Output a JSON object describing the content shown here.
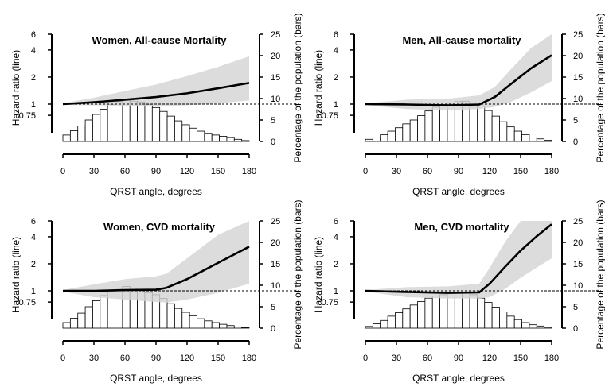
{
  "chart_data": [
    {
      "type": "line",
      "title": "Women, All-cause Mortality",
      "xlabel": "QRST angle, degrees",
      "ylabel_left": "Hazard ratio (line)",
      "ylabel_right": "Percentage of the population (bars)",
      "x_ticks": [
        "0",
        "30",
        "60",
        "90",
        "120",
        "150",
        "180"
      ],
      "y_left_ticks": [
        "0.75",
        "1",
        "2",
        "4",
        "6"
      ],
      "y_right_ticks": [
        "0",
        "5",
        "10",
        "15",
        "20",
        "25"
      ],
      "xlim": [
        0,
        180
      ],
      "ylim_left": [
        0.7,
        6.0
      ],
      "ylim_right": [
        0,
        25
      ],
      "left_scale": "log",
      "reference_line": 1,
      "hazard_ratio": {
        "x": [
          0,
          30,
          60,
          90,
          120,
          150,
          180
        ],
        "y": [
          1.0,
          1.05,
          1.12,
          1.2,
          1.32,
          1.5,
          1.72
        ],
        "ci_lower": [
          0.98,
          0.97,
          0.96,
          0.95,
          0.97,
          1.02,
          1.1
        ],
        "ci_upper": [
          1.02,
          1.18,
          1.4,
          1.65,
          2.05,
          2.6,
          3.4
        ]
      },
      "histogram": {
        "bin_width": 7.2,
        "bin_starts": [
          0,
          7.2,
          14.4,
          21.6,
          28.8,
          36,
          43.2,
          50.4,
          57.6,
          64.8,
          72,
          79.2,
          86.4,
          93.6,
          100.8,
          108,
          115.2,
          122.4,
          129.6,
          136.8,
          144,
          151.2,
          158.4,
          165.6,
          172.8
        ],
        "percent": [
          1.5,
          2.5,
          3.6,
          5,
          6.3,
          7.5,
          8.6,
          9.3,
          9.8,
          9.4,
          9.2,
          8.6,
          7.9,
          7,
          5.9,
          4.8,
          3.9,
          3.1,
          2.4,
          1.9,
          1.5,
          1.2,
          0.9,
          0.5,
          0.2
        ]
      }
    },
    {
      "type": "line",
      "title": "Men, All-cause mortality",
      "xlabel": "QRST angle, degrees",
      "ylabel_left": "Hazard ratio (line)",
      "ylabel_right": "Percentage of the population (bars)",
      "x_ticks": [
        "0",
        "30",
        "60",
        "90",
        "120",
        "150",
        "180"
      ],
      "y_left_ticks": [
        "0.75",
        "1",
        "2",
        "4",
        "6"
      ],
      "y_right_ticks": [
        "0",
        "5",
        "10",
        "15",
        "20",
        "25"
      ],
      "xlim": [
        0,
        180
      ],
      "ylim_left": [
        0.7,
        6.0
      ],
      "ylim_right": [
        0,
        25
      ],
      "left_scale": "log",
      "reference_line": 1,
      "hazard_ratio": {
        "x": [
          0,
          40,
          80,
          110,
          125,
          140,
          160,
          180
        ],
        "y": [
          1.0,
          0.99,
          0.97,
          0.99,
          1.2,
          1.65,
          2.5,
          3.5
        ],
        "ci_lower": [
          0.98,
          0.88,
          0.85,
          0.88,
          0.93,
          1.05,
          1.35,
          1.8
        ],
        "ci_upper": [
          1.02,
          1.12,
          1.15,
          1.25,
          1.55,
          2.4,
          4.2,
          6.0
        ]
      },
      "histogram": {
        "bin_width": 7.2,
        "bin_starts": [
          0,
          7.2,
          14.4,
          21.6,
          28.8,
          36,
          43.2,
          50.4,
          57.6,
          64.8,
          72,
          79.2,
          86.4,
          93.6,
          100.8,
          108,
          115.2,
          122.4,
          129.6,
          136.8,
          144,
          151.2,
          158.4,
          165.6,
          172.8
        ],
        "percent": [
          0.5,
          1,
          1.6,
          2.4,
          3.2,
          4.1,
          5,
          6,
          7.1,
          8,
          8.6,
          8.9,
          9.3,
          9.4,
          9,
          8.3,
          7.2,
          5.9,
          4.6,
          3.4,
          2.4,
          1.6,
          1,
          0.6,
          0.3
        ]
      }
    },
    {
      "type": "line",
      "title": "Women, CVD mortality",
      "xlabel": "QRST angle, degrees",
      "ylabel_left": "Hazard ratio (line)",
      "ylabel_right": "Percentage of the population (bars)",
      "x_ticks": [
        "0",
        "30",
        "60",
        "90",
        "120",
        "150",
        "180"
      ],
      "y_left_ticks": [
        "0.75",
        "1",
        "2",
        "4",
        "6"
      ],
      "y_right_ticks": [
        "0",
        "5",
        "10",
        "15",
        "20",
        "25"
      ],
      "xlim": [
        0,
        180
      ],
      "ylim_left": [
        0.7,
        6.0
      ],
      "ylim_right": [
        0,
        25
      ],
      "left_scale": "log",
      "reference_line": 1,
      "hazard_ratio": {
        "x": [
          0,
          30,
          60,
          90,
          100,
          120,
          150,
          180
        ],
        "y": [
          1.0,
          1.0,
          1.02,
          1.03,
          1.08,
          1.35,
          2.05,
          3.1
        ],
        "ci_lower": [
          0.98,
          0.85,
          0.8,
          0.75,
          0.74,
          0.8,
          0.95,
          1.2
        ],
        "ci_upper": [
          1.02,
          1.18,
          1.35,
          1.45,
          1.55,
          2.3,
          4.2,
          6.0
        ]
      },
      "histogram": {
        "bin_width": 7.2,
        "bin_starts": [
          0,
          7.2,
          14.4,
          21.6,
          28.8,
          36,
          43.2,
          50.4,
          57.6,
          64.8,
          72,
          79.2,
          86.4,
          93.6,
          100.8,
          108,
          115.2,
          122.4,
          129.6,
          136.8,
          144,
          151.2,
          158.4,
          165.6,
          172.8
        ],
        "percent": [
          1.3,
          2.3,
          3.5,
          5,
          6.4,
          7.6,
          8.6,
          9.3,
          9.7,
          9.3,
          8.8,
          8.3,
          7.8,
          6.9,
          5.7,
          4.6,
          3.7,
          2.9,
          2.2,
          1.7,
          1.3,
          0.9,
          0.6,
          0.3,
          0.1
        ]
      }
    },
    {
      "type": "line",
      "title": "Men, CVD mortality",
      "xlabel": "QRST angle, degrees",
      "ylabel_left": "Hazard ratio (line)",
      "ylabel_right": "Percentage of the population (bars)",
      "x_ticks": [
        "0",
        "30",
        "60",
        "90",
        "120",
        "150",
        "180"
      ],
      "y_left_ticks": [
        "0.75",
        "1",
        "2",
        "4",
        "6"
      ],
      "y_right_ticks": [
        "0",
        "5",
        "10",
        "15",
        "20",
        "25"
      ],
      "xlim": [
        0,
        180
      ],
      "ylim_left": [
        0.7,
        6.0
      ],
      "ylim_right": [
        0,
        25
      ],
      "left_scale": "log",
      "reference_line": 1,
      "hazard_ratio": {
        "x": [
          0,
          40,
          80,
          110,
          120,
          135,
          150,
          165,
          180
        ],
        "y": [
          1.0,
          0.97,
          0.95,
          0.96,
          1.2,
          1.85,
          2.8,
          4.0,
          5.5
        ],
        "ci_lower": [
          0.98,
          0.85,
          0.82,
          0.82,
          0.85,
          1.05,
          1.4,
          1.8,
          2.3
        ],
        "ci_upper": [
          1.02,
          1.1,
          1.12,
          1.2,
          1.8,
          3.5,
          6.0,
          6.0,
          6.0
        ]
      },
      "histogram": {
        "bin_width": 7.2,
        "bin_starts": [
          0,
          7.2,
          14.4,
          21.6,
          28.8,
          36,
          43.2,
          50.4,
          57.6,
          64.8,
          72,
          79.2,
          86.4,
          93.6,
          100.8,
          108,
          115.2,
          122.4,
          129.6,
          136.8,
          144,
          151.2,
          158.4,
          165.6,
          172.8
        ],
        "percent": [
          0.4,
          1,
          1.8,
          2.8,
          3.6,
          4.5,
          5.4,
          6.2,
          7,
          7.5,
          7.8,
          8.1,
          8.3,
          8.2,
          7.8,
          7,
          6,
          4.9,
          3.8,
          2.8,
          2,
          1.3,
          0.8,
          0.5,
          0.2
        ]
      }
    }
  ]
}
